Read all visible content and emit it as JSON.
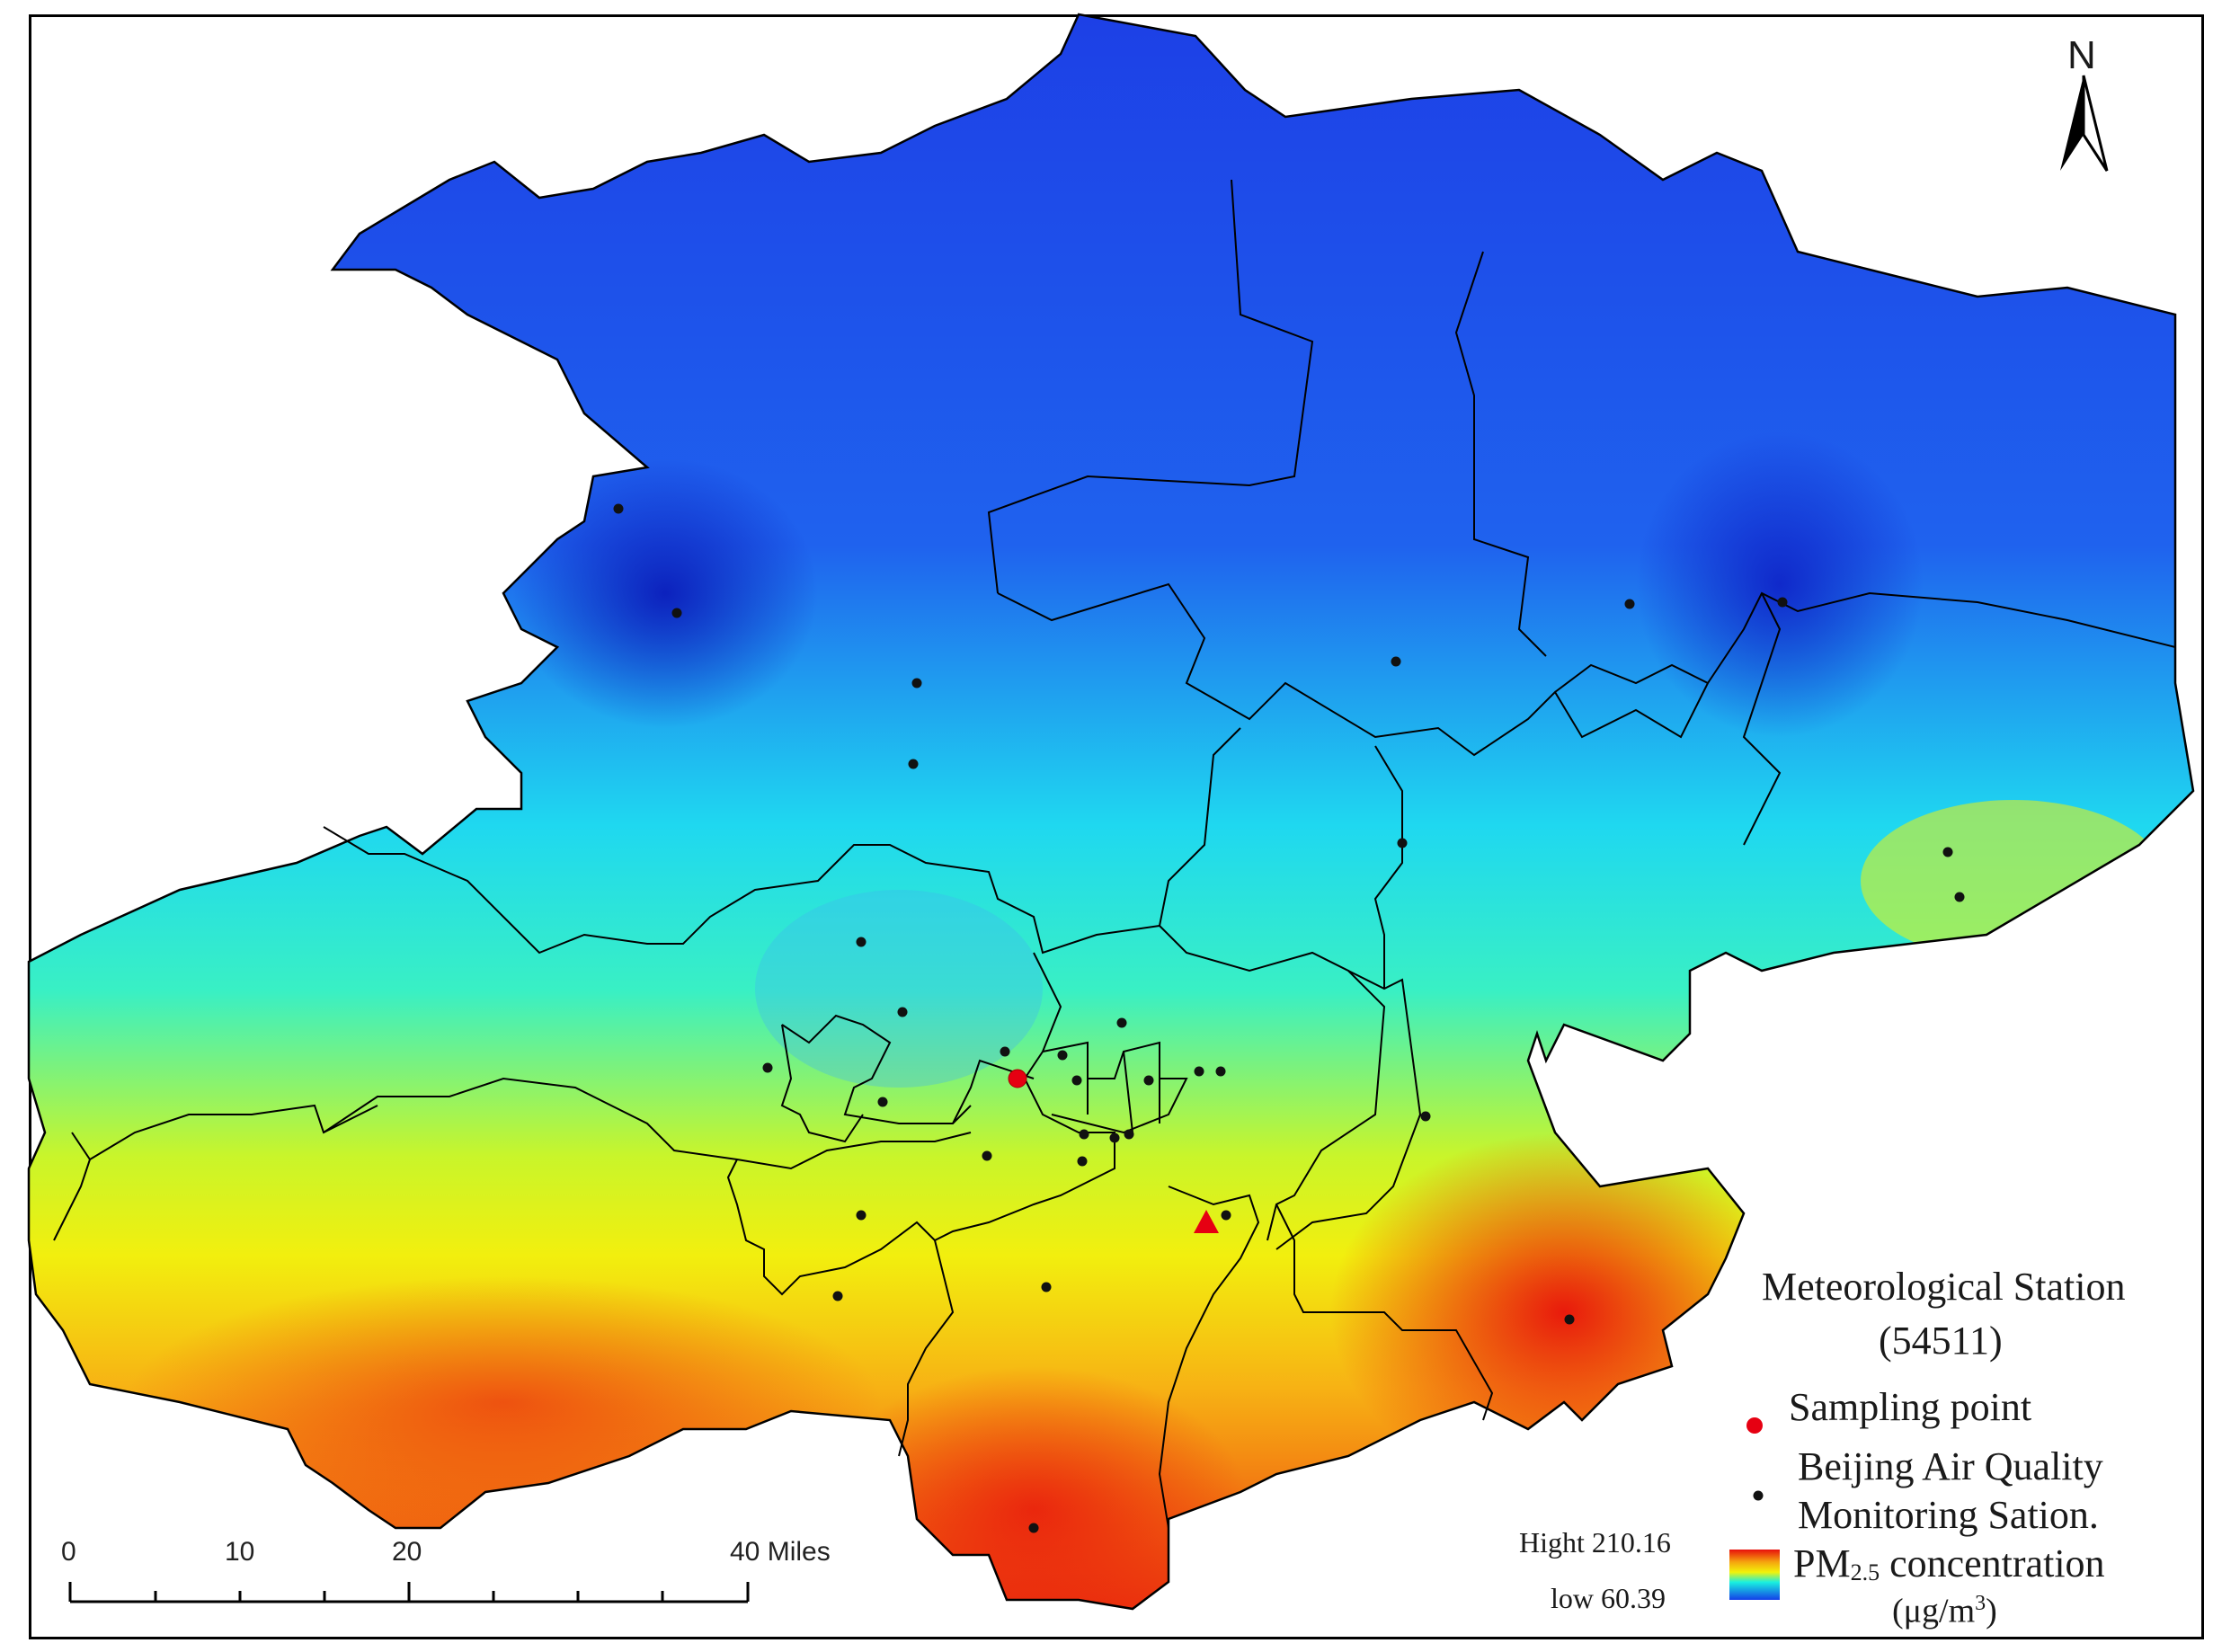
{
  "north_arrow": {
    "label": "N",
    "icon": "north-arrow-icon"
  },
  "scale_bar": {
    "ticks": [
      "0",
      "10",
      "20",
      "40 Miles"
    ]
  },
  "legend": {
    "station_title": "Meteorological Station",
    "station_id": "(54511)",
    "sampling_point_label": "Sampling point",
    "monitoring_label_line1": "Beijing Air Quality",
    "monitoring_label_line2": "Monitoring Sation.",
    "pm_label_prefix": "PM",
    "pm_label_sub": "2.5",
    "pm_label_suffix": " concentration",
    "unit_prefix": "(μg/m",
    "unit_sup": "3",
    "unit_suffix": ")",
    "high_label": "Hight 210.16",
    "low_label": "low 60.39",
    "colors": {
      "high": "#e8100c",
      "mid_high": "#f5a60e",
      "mid": "#f2f20a",
      "mid_low": "#18f0e0",
      "low": "#1440e8",
      "sampling_point": "#e60012",
      "station_marker": "#e60012",
      "monitor_dot": "#111111"
    }
  }
}
